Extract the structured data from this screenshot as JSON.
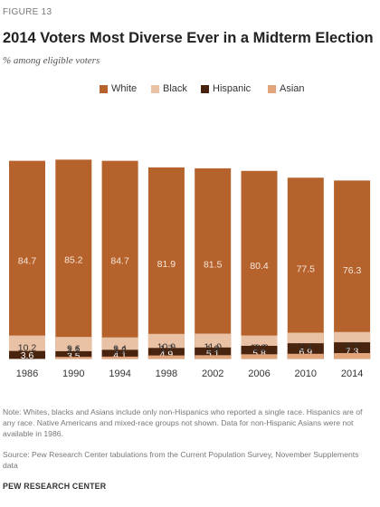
{
  "figure_label": "FIGURE 13",
  "chart_data": {
    "type": "bar",
    "stacked": true,
    "title": "2014 Voters Most Diverse Ever in a Midterm Election",
    "subtitle": "% among eligible voters",
    "categories": [
      "1986",
      "1990",
      "1994",
      "1998",
      "2002",
      "2006",
      "2010",
      "2014"
    ],
    "series": [
      {
        "name": "White",
        "color": "#b5622c",
        "values": [
          84.7,
          85.2,
          84.7,
          81.9,
          81.5,
          80.4,
          77.5,
          76.3
        ],
        "labels": [
          "84.7",
          "85.2",
          "84.7",
          "81.9",
          "81.5",
          "80.4",
          "77.5",
          "76.3"
        ]
      },
      {
        "name": "Black",
        "color": "#e9c1a5",
        "values": [
          10.2,
          9.6,
          9.4,
          10.9,
          11.0,
          10.2,
          11.4,
          11.7
        ],
        "labels": [
          "10.2",
          "9.6",
          "9.4",
          "10.9",
          "11.0",
          "10.2",
          "11.4",
          "11.7"
        ]
      },
      {
        "name": "Hispanic",
        "color": "#48240f",
        "values": [
          3.6,
          3.5,
          4.1,
          4.9,
          5.1,
          5.8,
          6.9,
          7.3
        ],
        "labels": [
          "3.6",
          "3.5",
          "4.1",
          "4.9",
          "5.1",
          "5.8",
          "6.9",
          "7.3"
        ]
      },
      {
        "name": "Asian",
        "color": "#e3a57c",
        "values": [
          null,
          1.1,
          1.2,
          1.7,
          1.8,
          2.2,
          2.4,
          2.7
        ],
        "labels": [
          "",
          "1.1",
          "1.2",
          "1.7",
          "1.8",
          "2.2",
          "2.4",
          "2.7"
        ]
      }
    ],
    "ylim": [
      0,
      100
    ],
    "legend_position": "top-center",
    "grid": false
  },
  "note": "Note: Whites, blacks and Asians include only non-Hispanics who reported a single race. Hispanics are of any race. Native Americans and mixed-race groups not shown. Data for non-Hispanic Asians were not available in 1986.",
  "source": "Source: Pew Research Center tabulations from the Current Population Survey, November Supplements data",
  "organization": "PEW RESEARCH CENTER"
}
